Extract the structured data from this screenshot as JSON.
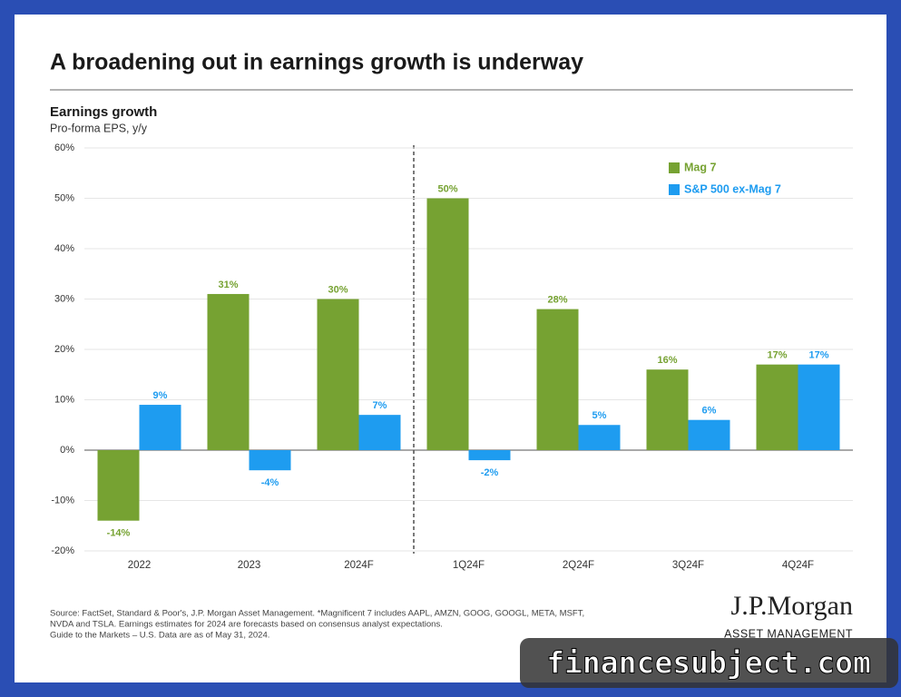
{
  "chart_data": {
    "type": "bar",
    "title": "A broadening out in earnings growth is underway",
    "subtitle": "Earnings growth",
    "y_label": "Pro-forma EPS, y/y",
    "categories": [
      "2022",
      "2023",
      "2024F",
      "1Q24F",
      "2Q24F",
      "3Q24F",
      "4Q24F"
    ],
    "series": [
      {
        "name": "Mag 7",
        "color": "#76a232",
        "values": [
          -14,
          31,
          30,
          50,
          28,
          16,
          17
        ],
        "value_labels": [
          "-14%",
          "31%",
          "30%",
          "50%",
          "28%",
          "16%",
          "17%"
        ]
      },
      {
        "name": "S&P 500 ex-Mag 7",
        "color": "#1e9cf0",
        "values": [
          9,
          -4,
          7,
          -2,
          5,
          6,
          17
        ],
        "value_labels": [
          "9%",
          "-4%",
          "7%",
          "-2%",
          "5%",
          "6%",
          "17%"
        ]
      }
    ],
    "ylim": [
      -20,
      60
    ],
    "yticks": [
      {
        "value": -20,
        "label": "-20%"
      },
      {
        "value": -10,
        "label": "-10%"
      },
      {
        "value": 0,
        "label": "0%"
      },
      {
        "value": 10,
        "label": "10%"
      },
      {
        "value": 20,
        "label": "20%"
      },
      {
        "value": 30,
        "label": "30%"
      },
      {
        "value": 40,
        "label": "40%"
      },
      {
        "value": 50,
        "label": "50%"
      },
      {
        "value": 60,
        "label": "60%"
      }
    ],
    "grid": true,
    "legend": "upper right"
  },
  "footnote": [
    "Source: FactSet, Standard & Poor's, J.P. Morgan Asset Management. *Magnificent 7 includes AAPL, AMZN, GOOG, GOOGL, META, MSFT,",
    "NVDA and TSLA. Earnings estimates for 2024 are forecasts based on consensus analyst expectations.",
    "Guide to the Markets – U.S. Data are as of May 31, 2024."
  ],
  "logo": {
    "name": "J.P.Morgan",
    "tagline": "ASSET MANAGEMENT"
  },
  "watermark": "financesubject.com"
}
